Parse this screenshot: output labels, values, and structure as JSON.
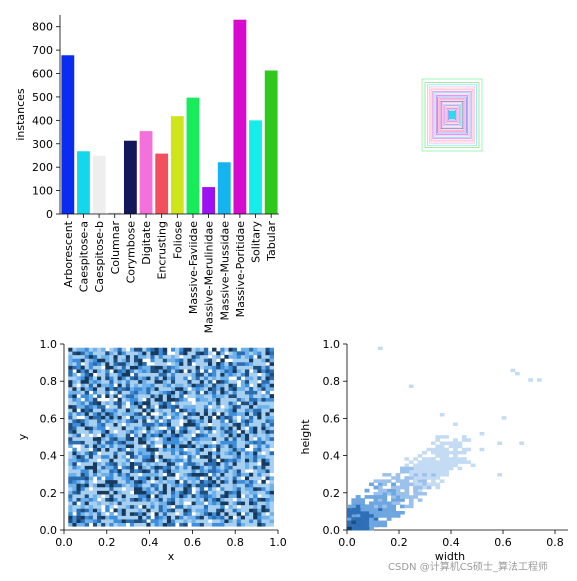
{
  "chart_data": [
    {
      "type": "bar",
      "ylabel": "instances",
      "categories": [
        "Arborescent",
        "Caespitose-a",
        "Caespitose-b",
        "Columnar",
        "Corymbose",
        "Digitate",
        "Encrusting",
        "Foliose",
        "Massive-Faviidae",
        "Massive-Merulinidae",
        "Massive-Mussidae",
        "Massive-Poritidae",
        "Solitary",
        "Tabular"
      ],
      "values": [
        678,
        268,
        249,
        5,
        313,
        354,
        258,
        418,
        497,
        115,
        221,
        830,
        400,
        613
      ],
      "colors": [
        "#0a2bf0",
        "#13d8ec",
        "#eeeeee",
        "#c9c9c9",
        "#13185a",
        "#f471db",
        "#f44f5d",
        "#cfe41a",
        "#18ec5a",
        "#9c12f2",
        "#14b4f0",
        "#d70bcd",
        "#15ecec",
        "#2fc81d"
      ],
      "ylim": [
        0,
        850
      ],
      "yticks": [
        0,
        100,
        200,
        300,
        400,
        500,
        600,
        700,
        800
      ]
    },
    {
      "type": "scatter",
      "description_free": true,
      "x": [
        0.5,
        0.5,
        0.5,
        0.5,
        0.5,
        0.5,
        0.5,
        0.5,
        0.5,
        0.5,
        0.5,
        0.5,
        0.5,
        0.5,
        0.5,
        0.5,
        0.5,
        0.5,
        0.5,
        0.5
      ],
      "y": [
        0.5,
        0.5,
        0.5,
        0.5,
        0.5,
        0.5,
        0.5,
        0.5,
        0.5,
        0.5,
        0.5,
        0.5,
        0.5,
        0.5,
        0.5,
        0.5,
        0.5,
        0.5,
        0.5,
        0.5
      ],
      "w": [
        0.08,
        0.12,
        0.16,
        0.2,
        0.24,
        0.28,
        0.32,
        0.36,
        0.4,
        0.44,
        0.48,
        0.52,
        0.56,
        0.6,
        0.64,
        0.7,
        0.76,
        0.82,
        0.9,
        1.0
      ],
      "h": [
        0.1,
        0.14,
        0.18,
        0.22,
        0.26,
        0.3,
        0.34,
        0.38,
        0.42,
        0.46,
        0.5,
        0.54,
        0.58,
        0.62,
        0.66,
        0.72,
        0.78,
        0.84,
        0.9,
        1.0
      ],
      "colors": [
        "#13d8ec",
        "#0a2bf0",
        "#d70bcd",
        "#f44f5d",
        "#9c12f2",
        "#14b4f0",
        "#f471db",
        "#13185a",
        "#d70bcd",
        "#f44f5d",
        "#0a2bf0",
        "#9c12f2",
        "#f471db",
        "#14b4f0",
        "#d70bcd",
        "#f44f5d",
        "#f471db",
        "#13d8ec",
        "#2fc81d",
        "#18ec5a"
      ]
    },
    {
      "type": "heatmap",
      "xlabel": "x",
      "ylabel": "y",
      "xlim": [
        0,
        1
      ],
      "ylim": [
        0,
        1
      ],
      "xticks": [
        0.0,
        0.2,
        0.4,
        0.6,
        0.8,
        1.0
      ],
      "yticks": [
        0.0,
        0.2,
        0.4,
        0.6,
        0.8,
        1.0
      ],
      "tick_labels": [
        "0.0",
        "0.2",
        "0.4",
        "0.6",
        "0.8",
        "1.0"
      ],
      "data_extent_x": [
        0.02,
        0.98
      ],
      "data_extent_y": [
        0.02,
        0.98
      ],
      "bins": 50
    },
    {
      "type": "heatmap",
      "xlabel": "width",
      "ylabel": "height",
      "xlim": [
        0,
        0.85
      ],
      "ylim": [
        0,
        1.0
      ],
      "xticks": [
        0.0,
        0.2,
        0.4,
        0.6,
        0.8
      ],
      "yticks": [
        0.0,
        0.2,
        0.4,
        0.6,
        0.8,
        1.0
      ],
      "xtick_labels": [
        "0.0",
        "0.2",
        "0.4",
        "0.6",
        "0.8"
      ],
      "ytick_labels": [
        "0.0",
        "0.2",
        "0.4",
        "0.6",
        "0.8",
        "1.0"
      ],
      "bins": 50
    }
  ],
  "watermark": "CSDN @计算机CS硕士_算法工程师"
}
